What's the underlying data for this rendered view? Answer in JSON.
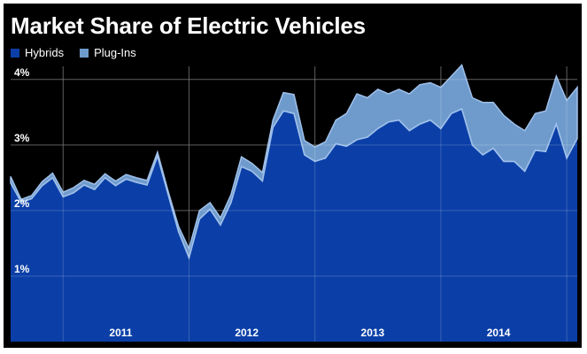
{
  "chart_data": {
    "type": "area",
    "title": "Market Share of Electric Vehicles",
    "legend": {
      "placement": "top-left",
      "items": [
        "Hybrids",
        "Plug-Ins"
      ]
    },
    "colors": {
      "background": "#000000",
      "hybrids": "#0b3fa7",
      "plugins": "#6f9bcc",
      "grid": "#3a3a3a",
      "line": "#9fc0ea"
    },
    "x_tick_labels": [
      "2011",
      "2012",
      "2013",
      "2014"
    ],
    "y_tick_labels": [
      "1%",
      "2%",
      "3%",
      "4%"
    ],
    "y_ticks": [
      1,
      2,
      3,
      4
    ],
    "ylim": [
      0,
      4.2
    ],
    "grid": true,
    "x": [
      "2010-08",
      "2010-09",
      "2010-10",
      "2010-11",
      "2010-12",
      "2011-01",
      "2011-02",
      "2011-03",
      "2011-04",
      "2011-05",
      "2011-06",
      "2011-07",
      "2011-08",
      "2011-09",
      "2011-10",
      "2011-11",
      "2011-12",
      "2012-01",
      "2012-02",
      "2012-03",
      "2012-04",
      "2012-05",
      "2012-06",
      "2012-07",
      "2012-08",
      "2012-09",
      "2012-10",
      "2012-11",
      "2012-12",
      "2013-01",
      "2013-02",
      "2013-03",
      "2013-04",
      "2013-05",
      "2013-06",
      "2013-07",
      "2013-08",
      "2013-09",
      "2013-10",
      "2013-11",
      "2013-12",
      "2014-01",
      "2014-02",
      "2014-03",
      "2014-04",
      "2014-05",
      "2014-06",
      "2014-07",
      "2014-08",
      "2014-09",
      "2014-10",
      "2014-11",
      "2014-12",
      "2015-01",
      "2015-02"
    ],
    "series": [
      {
        "name": "Hybrids",
        "values": [
          2.42,
          2.13,
          2.18,
          2.38,
          2.5,
          2.21,
          2.27,
          2.39,
          2.32,
          2.5,
          2.38,
          2.48,
          2.43,
          2.39,
          2.83,
          2.25,
          1.68,
          1.28,
          1.87,
          2.02,
          1.78,
          2.12,
          2.67,
          2.6,
          2.45,
          3.27,
          3.52,
          3.48,
          2.85,
          2.75,
          2.8,
          3.02,
          2.98,
          3.08,
          3.12,
          3.25,
          3.35,
          3.38,
          3.22,
          3.32,
          3.38,
          3.25,
          3.48,
          3.55,
          3.0,
          2.85,
          2.95,
          2.75,
          2.75,
          2.6,
          2.92,
          2.9,
          3.32,
          2.8,
          3.1
        ]
      },
      {
        "name": "Plug-Ins",
        "values": [
          2.52,
          2.17,
          2.23,
          2.44,
          2.57,
          2.28,
          2.35,
          2.46,
          2.4,
          2.56,
          2.45,
          2.55,
          2.5,
          2.46,
          2.89,
          2.3,
          1.76,
          1.42,
          2.0,
          2.12,
          1.89,
          2.24,
          2.82,
          2.72,
          2.58,
          3.38,
          3.8,
          3.77,
          3.07,
          2.97,
          3.05,
          3.38,
          3.48,
          3.78,
          3.72,
          3.85,
          3.78,
          3.85,
          3.78,
          3.92,
          3.95,
          3.88,
          4.05,
          4.22,
          3.72,
          3.65,
          3.65,
          3.45,
          3.32,
          3.22,
          3.48,
          3.52,
          4.05,
          3.68,
          3.88
        ]
      }
    ]
  }
}
